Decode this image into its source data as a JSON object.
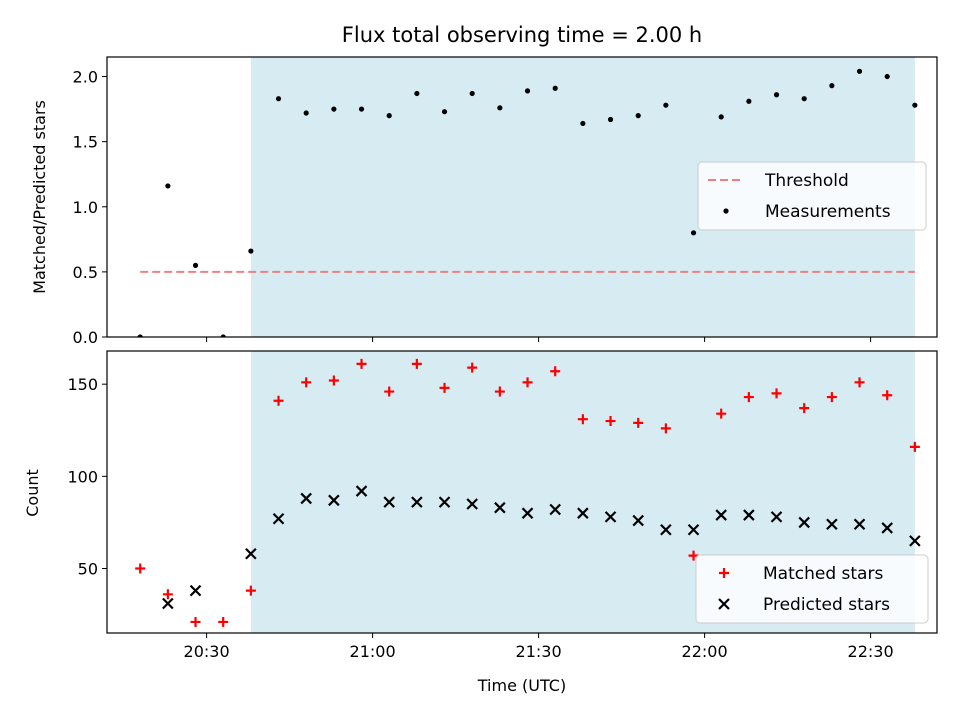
{
  "chart_data": {
    "type": "scatter",
    "title": "Flux total observing time = 2.00 h",
    "x_unit": "time (UTC)",
    "xlabel": "Time (UTC)",
    "xlim": [
      "20:12",
      "22:42"
    ],
    "xticks": [
      "20:30",
      "21:00",
      "21:30",
      "22:00",
      "22:30"
    ],
    "observing_window": [
      "20:38",
      "22:38"
    ],
    "times": [
      "20:18",
      "20:23",
      "20:28",
      "20:33",
      "20:38",
      "20:43",
      "20:48",
      "20:53",
      "20:58",
      "21:03",
      "21:08",
      "21:13",
      "21:18",
      "21:23",
      "21:28",
      "21:33",
      "21:38",
      "21:43",
      "21:48",
      "21:53",
      "21:58",
      "22:03",
      "22:08",
      "22:13",
      "22:18",
      "22:23",
      "22:28",
      "22:33",
      "22:38"
    ],
    "panels": [
      {
        "name": "ratio",
        "ylabel": "Matched/Predicted stars",
        "ylim": [
          0,
          2.15
        ],
        "yticks": [
          0.0,
          0.5,
          1.0,
          1.5,
          2.0
        ],
        "ytick_labels": [
          "0.0",
          "0.5",
          "1.0",
          "1.5",
          "2.0"
        ],
        "threshold": {
          "name": "Threshold",
          "value": 0.5,
          "range": [
            "20:18",
            "22:38"
          ],
          "color": "#f08080"
        },
        "series": [
          {
            "name": "Measurements",
            "marker": "dot",
            "color": "#000000",
            "values": [
              0.0,
              1.16,
              0.55,
              0.0,
              0.66,
              1.83,
              1.72,
              1.75,
              1.75,
              1.7,
              1.87,
              1.73,
              1.87,
              1.76,
              1.89,
              1.91,
              1.64,
              1.67,
              1.7,
              1.78,
              0.8,
              1.69,
              1.81,
              1.86,
              1.83,
              1.93,
              2.04,
              2.0,
              1.78
            ]
          }
        ],
        "legend": "center-right"
      },
      {
        "name": "count",
        "ylabel": "Count",
        "ylim": [
          15,
          168
        ],
        "yticks": [
          50,
          100,
          150
        ],
        "ytick_labels": [
          "50",
          "100",
          "150"
        ],
        "series": [
          {
            "name": "Matched stars",
            "marker": "plus",
            "color": "#ff0000",
            "values": [
              50,
              36,
              21,
              21,
              38,
              141,
              151,
              152,
              161,
              146,
              161,
              148,
              159,
              146,
              151,
              157,
              131,
              130,
              129,
              126,
              57,
              134,
              143,
              145,
              137,
              143,
              151,
              144,
              116
            ]
          },
          {
            "name": "Predicted stars",
            "marker": "x",
            "color": "#000000",
            "values": [
              null,
              31,
              38,
              null,
              58,
              77,
              88,
              87,
              92,
              86,
              86,
              86,
              85,
              83,
              80,
              82,
              80,
              78,
              76,
              71,
              71,
              79,
              79,
              78,
              75,
              74,
              74,
              72,
              65
            ]
          }
        ],
        "legend": "bottom-right"
      }
    ],
    "shade_color": "#add8e6",
    "grid": false
  }
}
